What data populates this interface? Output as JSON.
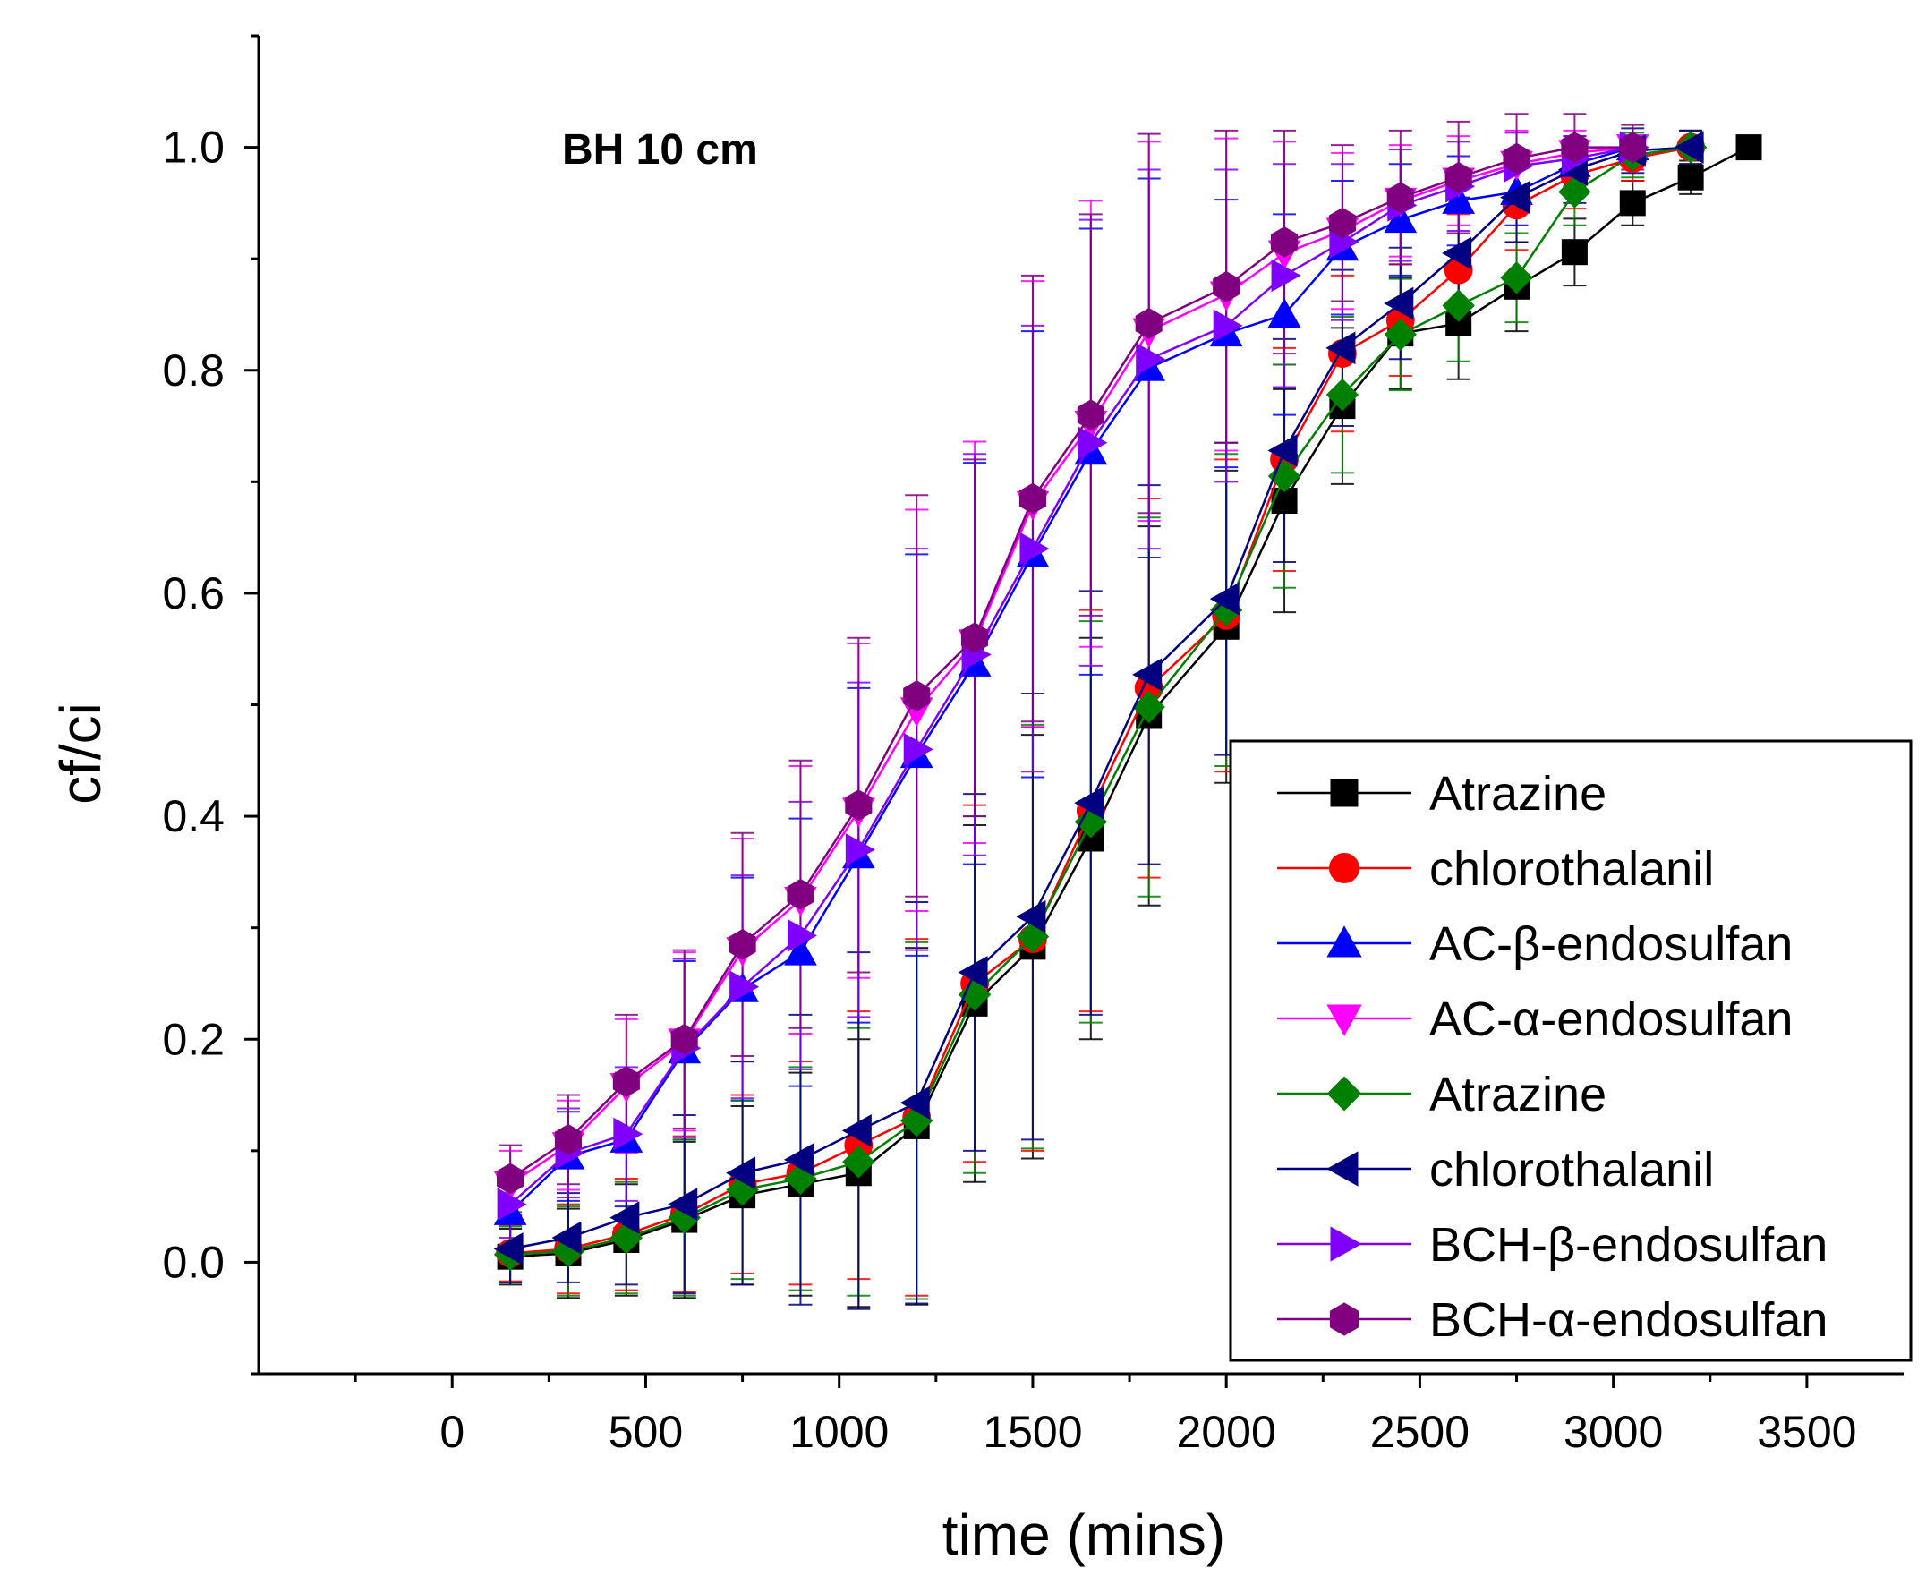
{
  "chart_data": {
    "type": "line",
    "title": "",
    "annotation": "BH 10 cm",
    "xlabel": "time (mins)",
    "ylabel": "cf/ci",
    "xlim": [
      -500,
      3750
    ],
    "ylim": [
      -0.1,
      1.1
    ],
    "xticks": [
      0,
      500,
      1000,
      1500,
      2000,
      2500,
      3000,
      3500
    ],
    "xtick_labels": [
      "0",
      "500",
      "1000",
      "1500",
      "2000",
      "2500",
      "3000",
      "3500"
    ],
    "yticks": [
      0.0,
      0.2,
      0.4,
      0.6,
      0.8,
      1.0
    ],
    "ytick_labels": [
      "0.0",
      "0.2",
      "0.4",
      "0.6",
      "0.8",
      "1.0"
    ],
    "legend_position": "lower-right",
    "error_bars": true,
    "series": [
      {
        "name": "Atrazine",
        "marker": "square",
        "color": "#000000",
        "x": [
          150,
          300,
          450,
          600,
          750,
          900,
          1050,
          1200,
          1350,
          1500,
          1650,
          1800,
          2000,
          2150,
          2300,
          2450,
          2600,
          2750,
          2900,
          3050,
          3200,
          3350
        ],
        "y": [
          0.005,
          0.008,
          0.02,
          0.038,
          0.06,
          0.07,
          0.08,
          0.122,
          0.232,
          0.283,
          0.38,
          0.49,
          0.57,
          0.683,
          0.768,
          0.833,
          0.842,
          0.875,
          0.906,
          0.95,
          0.973,
          1.0
        ],
        "err": [
          0.025,
          0.04,
          0.05,
          0.07,
          0.08,
          0.1,
          0.12,
          0.16,
          0.16,
          0.19,
          0.18,
          0.17,
          0.14,
          0.1,
          0.07,
          0.05,
          0.05,
          0.04,
          0.03,
          0.02,
          0.015,
          0.01
        ]
      },
      {
        "name": "chlorothalanil",
        "marker": "circle",
        "color": "#ff0000",
        "x": [
          150,
          300,
          450,
          600,
          750,
          900,
          1050,
          1200,
          1350,
          1500,
          1650,
          1800,
          2000,
          2150,
          2300,
          2450,
          2600,
          2750,
          2900,
          3050,
          3200
        ],
        "y": [
          0.008,
          0.012,
          0.025,
          0.043,
          0.07,
          0.08,
          0.105,
          0.13,
          0.25,
          0.29,
          0.405,
          0.515,
          0.58,
          0.72,
          0.815,
          0.845,
          0.89,
          0.948,
          0.975,
          0.99,
          1.0
        ],
        "err": [
          0.025,
          0.04,
          0.05,
          0.07,
          0.08,
          0.1,
          0.12,
          0.16,
          0.16,
          0.19,
          0.18,
          0.17,
          0.14,
          0.1,
          0.07,
          0.05,
          0.05,
          0.04,
          0.03,
          0.02,
          0.015
        ]
      },
      {
        "name": "AC-β-endosulfan",
        "marker": "triangle-up",
        "color": "#0000ff",
        "x": [
          150,
          300,
          450,
          600,
          750,
          900,
          1050,
          1200,
          1350,
          1500,
          1650,
          1800,
          2000,
          2150,
          2300,
          2450,
          2600,
          2750,
          2900,
          3050
        ],
        "y": [
          0.045,
          0.095,
          0.11,
          0.19,
          0.245,
          0.278,
          0.365,
          0.455,
          0.537,
          0.635,
          0.727,
          0.802,
          0.833,
          0.85,
          0.91,
          0.935,
          0.952,
          0.96,
          0.985,
          1.0
        ],
        "err": [
          0.03,
          0.04,
          0.06,
          0.08,
          0.1,
          0.12,
          0.15,
          0.18,
          0.18,
          0.2,
          0.2,
          0.17,
          0.12,
          0.09,
          0.06,
          0.05,
          0.04,
          0.03,
          0.02,
          0.01
        ]
      },
      {
        "name": "AC-α-endosulfan",
        "marker": "triangle-down",
        "color": "#ff00ff",
        "x": [
          150,
          300,
          450,
          600,
          750,
          900,
          1050,
          1200,
          1350,
          1500,
          1650,
          1800,
          2000,
          2150,
          2300,
          2450,
          2600,
          2750,
          2900,
          3050
        ],
        "y": [
          0.07,
          0.105,
          0.158,
          0.198,
          0.28,
          0.325,
          0.405,
          0.495,
          0.556,
          0.68,
          0.752,
          0.835,
          0.868,
          0.905,
          0.925,
          0.952,
          0.97,
          0.985,
          0.995,
          1.0
        ],
        "err": [
          0.03,
          0.04,
          0.06,
          0.08,
          0.1,
          0.12,
          0.15,
          0.18,
          0.18,
          0.2,
          0.2,
          0.17,
          0.14,
          0.1,
          0.07,
          0.05,
          0.04,
          0.03,
          0.02,
          0.01
        ]
      },
      {
        "name": "Atrazine",
        "marker": "diamond",
        "color": "#008000",
        "x": [
          150,
          300,
          450,
          600,
          750,
          900,
          1050,
          1200,
          1350,
          1500,
          1650,
          1800,
          2000,
          2150,
          2300,
          2450,
          2600,
          2750,
          2900,
          3050,
          3200
        ],
        "y": [
          0.007,
          0.01,
          0.022,
          0.04,
          0.065,
          0.075,
          0.09,
          0.127,
          0.24,
          0.292,
          0.395,
          0.498,
          0.585,
          0.705,
          0.778,
          0.832,
          0.858,
          0.883,
          0.96,
          0.993,
          1.0
        ],
        "err": [
          0.025,
          0.04,
          0.05,
          0.07,
          0.08,
          0.1,
          0.12,
          0.16,
          0.16,
          0.19,
          0.18,
          0.17,
          0.14,
          0.1,
          0.07,
          0.05,
          0.05,
          0.04,
          0.03,
          0.02,
          0.015
        ]
      },
      {
        "name": "chlorothalanil",
        "marker": "triangle-left",
        "color": "#000080",
        "x": [
          150,
          300,
          450,
          600,
          750,
          900,
          1050,
          1200,
          1350,
          1500,
          1650,
          1800,
          2000,
          2150,
          2300,
          2450,
          2600,
          2750,
          2900,
          3050,
          3200
        ],
        "y": [
          0.012,
          0.022,
          0.04,
          0.052,
          0.08,
          0.092,
          0.118,
          0.143,
          0.26,
          0.31,
          0.412,
          0.527,
          0.595,
          0.728,
          0.82,
          0.86,
          0.905,
          0.955,
          0.98,
          0.997,
          1.0
        ],
        "err": [
          0.03,
          0.04,
          0.06,
          0.08,
          0.1,
          0.13,
          0.16,
          0.18,
          0.16,
          0.2,
          0.19,
          0.17,
          0.14,
          0.1,
          0.07,
          0.05,
          0.05,
          0.04,
          0.03,
          0.02,
          0.015
        ]
      },
      {
        "name": "BCH-β-endosulfan",
        "marker": "triangle-right",
        "color": "#8000ff",
        "x": [
          150,
          300,
          450,
          600,
          750,
          900,
          1050,
          1200,
          1350,
          1500,
          1650,
          1800,
          2000,
          2150,
          2300,
          2450,
          2600,
          2750,
          2900,
          3050
        ],
        "y": [
          0.052,
          0.098,
          0.115,
          0.192,
          0.247,
          0.293,
          0.37,
          0.46,
          0.545,
          0.64,
          0.735,
          0.81,
          0.84,
          0.885,
          0.915,
          0.948,
          0.965,
          0.983,
          0.99,
          1.0
        ],
        "err": [
          0.03,
          0.04,
          0.06,
          0.08,
          0.1,
          0.12,
          0.15,
          0.18,
          0.18,
          0.2,
          0.2,
          0.17,
          0.14,
          0.1,
          0.07,
          0.05,
          0.04,
          0.03,
          0.02,
          0.01
        ]
      },
      {
        "name": "BCH-α-endosulfan",
        "marker": "hexagon",
        "color": "#800080",
        "x": [
          150,
          300,
          450,
          600,
          750,
          900,
          1050,
          1200,
          1350,
          1500,
          1650,
          1800,
          2000,
          2150,
          2300,
          2450,
          2600,
          2750,
          2900,
          3050
        ],
        "y": [
          0.075,
          0.11,
          0.162,
          0.2,
          0.285,
          0.33,
          0.41,
          0.508,
          0.56,
          0.685,
          0.76,
          0.842,
          0.875,
          0.915,
          0.932,
          0.955,
          0.973,
          0.99,
          1.0,
          1.0
        ],
        "err": [
          0.03,
          0.04,
          0.06,
          0.08,
          0.1,
          0.12,
          0.15,
          0.18,
          0.16,
          0.2,
          0.18,
          0.17,
          0.14,
          0.1,
          0.07,
          0.06,
          0.05,
          0.04,
          0.03,
          0.02
        ]
      }
    ]
  }
}
